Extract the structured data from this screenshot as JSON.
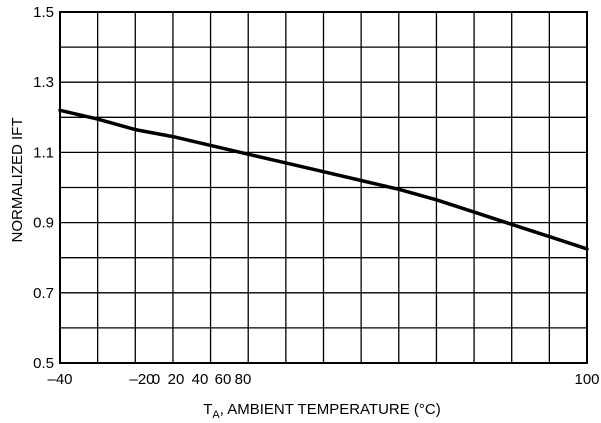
{
  "chart_data": {
    "type": "line",
    "ylabel": "NORMALIZED IFT",
    "xlabel_main": "T",
    "xlabel_sub": "A",
    "xlabel_rest": ", AMBIENT TEMPERATURE (°C)",
    "x_tick_labels": [
      "–40",
      "–20",
      "0",
      "20",
      "40",
      "60",
      "80",
      "100"
    ],
    "x_tick_values": [
      -40,
      -20,
      0,
      20,
      40,
      60,
      80,
      100
    ],
    "y_tick_labels": [
      "1.5",
      "1.3",
      "1.1",
      "0.9",
      "0.7",
      "0.5"
    ],
    "y_tick_values": [
      1.5,
      1.3,
      1.1,
      0.9,
      0.7,
      0.5
    ],
    "ylim": [
      0.5,
      1.5
    ],
    "grid": true,
    "series": [
      {
        "x": [
          -40,
          -30,
          -20,
          -10,
          0,
          10,
          20,
          30,
          40,
          50,
          60,
          70,
          80,
          90,
          100
        ],
        "y": [
          1.22,
          1.195,
          1.165,
          1.145,
          1.12,
          1.095,
          1.07,
          1.045,
          1.02,
          0.995,
          0.965,
          0.93,
          0.895,
          0.86,
          0.825
        ]
      }
    ]
  }
}
